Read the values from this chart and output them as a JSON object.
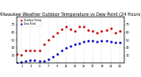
{
  "title": "Milwaukee Weather Outdoor Temperature vs Dew Point (24 Hours)",
  "title_fontsize": 3.5,
  "bg_color": "#ffffff",
  "temp_color": "#cc0000",
  "dew_color": "#0000cc",
  "ylim": [
    20,
    80
  ],
  "xlim": [
    0,
    24
  ],
  "hours": [
    0,
    1,
    2,
    3,
    4,
    5,
    6,
    7,
    8,
    9,
    10,
    11,
    12,
    13,
    14,
    15,
    16,
    17,
    18,
    19,
    20,
    21,
    22,
    23
  ],
  "temp": [
    32,
    31,
    36,
    36,
    37,
    36,
    45,
    50,
    55,
    60,
    64,
    67,
    64,
    62,
    68,
    67,
    63,
    62,
    60,
    62,
    63,
    65,
    60,
    62
  ],
  "dew": [
    20,
    22,
    23,
    24,
    24,
    23,
    23,
    25,
    28,
    32,
    36,
    40,
    42,
    44,
    46,
    48,
    49,
    49,
    48,
    49,
    49,
    48,
    47,
    47
  ],
  "vline_positions": [
    1,
    3,
    5,
    7,
    9,
    11,
    13,
    15,
    17,
    19,
    21,
    23
  ],
  "vline_color": "#bbbbbb",
  "marker_size": 1.8,
  "right_yticks": [
    30,
    40,
    50,
    60,
    70
  ],
  "left_yticks": [
    30,
    40,
    50,
    60,
    70
  ],
  "xtick_labels": [
    "1",
    "3",
    "5",
    "7",
    "9",
    "11",
    "13",
    "15",
    "17",
    "19",
    "21",
    "23"
  ],
  "xtick_positions": [
    1,
    3,
    5,
    7,
    9,
    11,
    13,
    15,
    17,
    19,
    21,
    23
  ],
  "legend_temp": "Outdoor Temp",
  "legend_dew": "Dew Point"
}
